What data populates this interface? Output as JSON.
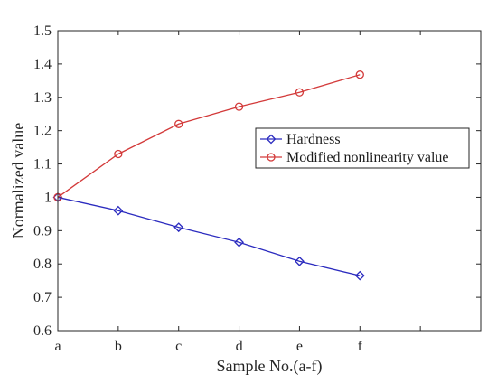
{
  "chart_data": {
    "type": "line",
    "title": "",
    "xlabel": "Sample No.(a-f)",
    "ylabel": "Normalized value",
    "categories": [
      "a",
      "b",
      "c",
      "d",
      "e",
      "f"
    ],
    "x_axis_slots": 8,
    "ylim": [
      0.6,
      1.5
    ],
    "yticks": [
      0.6,
      0.7,
      0.8,
      0.9,
      1,
      1.1,
      1.2,
      1.3,
      1.4,
      1.5
    ],
    "ytick_labels": [
      "0.6",
      "0.7",
      "0.8",
      "0.9",
      "1",
      "1.1",
      "1.2",
      "1.3",
      "1.4",
      "1.5"
    ],
    "grid": false,
    "legend_position": "right-middle",
    "series": [
      {
        "name": "Hardness",
        "color": "#2b2bbf",
        "marker": "diamond",
        "values": [
          1.0,
          0.96,
          0.91,
          0.865,
          0.808,
          0.765
        ]
      },
      {
        "name": "Modified nonlinearity value",
        "color": "#d33a3a",
        "marker": "circle",
        "values": [
          1.0,
          1.13,
          1.22,
          1.272,
          1.315,
          1.368
        ]
      }
    ]
  }
}
